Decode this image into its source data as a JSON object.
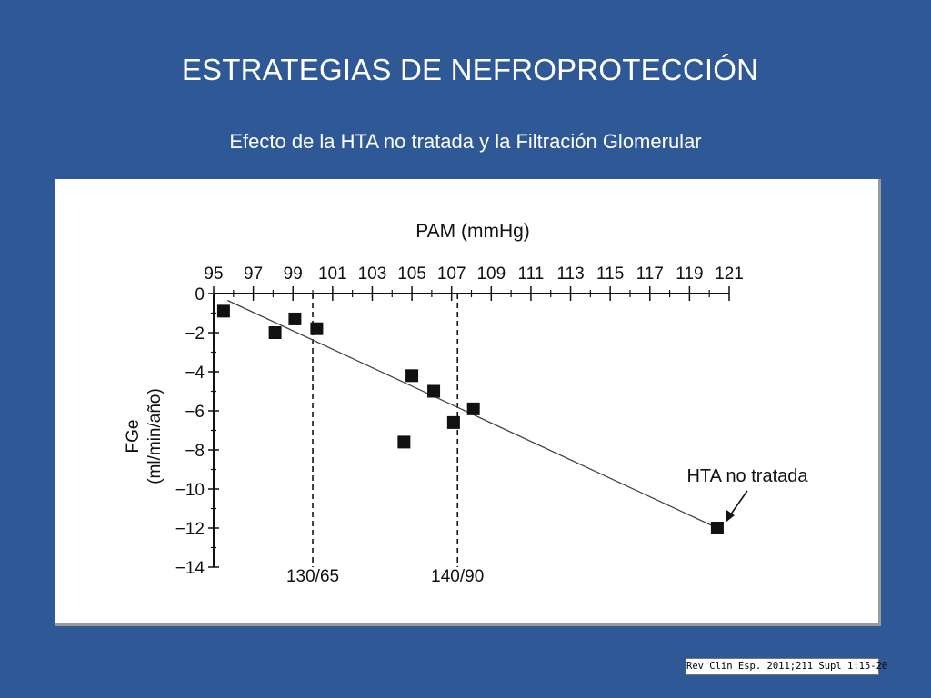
{
  "slide": {
    "title": "ESTRATEGIAS DE NEFROPROTECCIÓN",
    "subtitle": "Efecto de la HTA no tratada y la Filtración Glomerular",
    "source": "Rev Clin Esp. 2011;211 Supl 1:15-20"
  },
  "colors": {
    "background": "#2f5896",
    "panel": "#ffffff",
    "ink": "#111111"
  },
  "chart_data": {
    "type": "scatter",
    "xlabel": "PAM (mmHg)",
    "ylabel_line1": "FGe",
    "ylabel_line2": "(ml/min/año)",
    "xlim": [
      95,
      121
    ],
    "ylim": [
      -14,
      0
    ],
    "x_ticks": [
      95,
      97,
      99,
      101,
      103,
      105,
      107,
      109,
      111,
      113,
      115,
      117,
      119,
      121
    ],
    "y_ticks": [
      0,
      -2,
      -4,
      -6,
      -8,
      -10,
      -12,
      -14
    ],
    "y_tick_labels": [
      "0",
      "−2",
      "−4",
      "−6",
      "−8",
      "−10",
      "−12",
      "−14"
    ],
    "series": [
      {
        "points": [
          {
            "x": 95.5,
            "y": -0.9
          },
          {
            "x": 98.1,
            "y": -2.0
          },
          {
            "x": 99.1,
            "y": -1.3
          },
          {
            "x": 100.2,
            "y": -1.8
          },
          {
            "x": 104.6,
            "y": -7.6
          },
          {
            "x": 105.0,
            "y": -4.2
          },
          {
            "x": 106.1,
            "y": -5.0
          },
          {
            "x": 107.1,
            "y": -6.6
          },
          {
            "x": 108.1,
            "y": -5.9
          },
          {
            "x": 120.4,
            "y": -12.0
          }
        ]
      }
    ],
    "trend_line": {
      "x": [
        95.7,
        120.4
      ],
      "y": [
        -0.35,
        -12.0
      ]
    },
    "reference_lines": [
      {
        "x": 100.0,
        "label": "130/65"
      },
      {
        "x": 107.3,
        "label": "140/90"
      }
    ],
    "annotation": {
      "text": "HTA no tratada",
      "x": 120.4,
      "y": -12.0
    }
  }
}
